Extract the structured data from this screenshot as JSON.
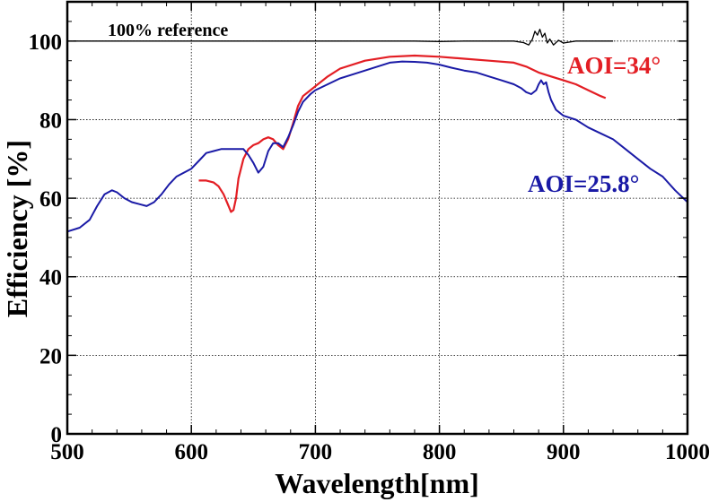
{
  "chart_data": {
    "type": "line",
    "xlabel": "Wavelength[nm]",
    "ylabel": "Efficiency [%]",
    "xlim": [
      500,
      1000
    ],
    "ylim": [
      0,
      110
    ],
    "xticks": [
      500,
      600,
      700,
      800,
      900,
      1000
    ],
    "yticks": [
      0,
      20,
      40,
      60,
      80,
      100
    ],
    "grid": true,
    "series": [
      {
        "name": "100% reference",
        "color": "#000000",
        "x": [
          505,
          520,
          540,
          560,
          580,
          600,
          620,
          640,
          660,
          680,
          700,
          720,
          740,
          760,
          780,
          800,
          820,
          840,
          860,
          868,
          872,
          875,
          877,
          879,
          881,
          883,
          885,
          887,
          889,
          892,
          896,
          900,
          910,
          920,
          930,
          940
        ],
        "y": [
          100,
          100,
          100,
          100,
          100,
          100,
          100,
          100,
          100,
          100,
          100,
          100,
          100,
          100,
          100,
          99.9,
          100,
          100,
          100,
          99.6,
          99,
          100.5,
          102.5,
          101.5,
          103,
          101,
          102,
          99.5,
          100.5,
          99,
          100.2,
          99.5,
          100,
          100,
          100,
          100
        ]
      },
      {
        "name": "AOI=34°",
        "color": "#e31e24",
        "x": [
          606,
          612,
          618,
          622,
          626,
          630,
          632,
          634,
          636,
          638,
          642,
          646,
          650,
          654,
          658,
          662,
          666,
          670,
          674,
          678,
          682,
          686,
          690,
          696,
          700,
          710,
          720,
          740,
          760,
          780,
          800,
          820,
          840,
          860,
          870,
          880,
          890,
          900,
          910,
          920,
          930,
          934
        ],
        "y": [
          64.5,
          64.5,
          64,
          63,
          61,
          58,
          56.5,
          57,
          60,
          65,
          70,
          72.5,
          73.5,
          74,
          75,
          75.5,
          75,
          73.5,
          72.5,
          75,
          79,
          83.5,
          86,
          87.5,
          88.5,
          91,
          93,
          95,
          96,
          96.3,
          96,
          95.5,
          95,
          94.5,
          93.5,
          92,
          91,
          90,
          89,
          87.5,
          86,
          85.5
        ]
      },
      {
        "name": "AOI=25.8°",
        "color": "#1a1aa6",
        "x": [
          500,
          510,
          518,
          524,
          530,
          536,
          540,
          546,
          552,
          558,
          564,
          570,
          576,
          582,
          588,
          594,
          600,
          606,
          612,
          618,
          624,
          630,
          636,
          642,
          646,
          650,
          654,
          658,
          662,
          666,
          670,
          674,
          678,
          682,
          686,
          690,
          696,
          700,
          710,
          720,
          730,
          740,
          750,
          760,
          770,
          780,
          790,
          800,
          810,
          820,
          830,
          840,
          850,
          860,
          866,
          870,
          874,
          878,
          880,
          882,
          884,
          886,
          888,
          890,
          894,
          900,
          910,
          920,
          930,
          940,
          950,
          960,
          970,
          980,
          990,
          1000
        ],
        "y": [
          51.5,
          52.5,
          54.5,
          58,
          61,
          62,
          61.5,
          60,
          59,
          58.5,
          58,
          59,
          61,
          63.5,
          65.5,
          66.5,
          67.5,
          69.5,
          71.5,
          72,
          72.5,
          72.5,
          72.5,
          72.5,
          71,
          69,
          66.5,
          68,
          72,
          74,
          74,
          73,
          75.5,
          78.5,
          82,
          84.5,
          86.5,
          87.5,
          89,
          90.5,
          91.5,
          92.5,
          93.5,
          94.5,
          94.8,
          94.7,
          94.5,
          94,
          93.2,
          92.5,
          92,
          91,
          90,
          89,
          88,
          87,
          86.5,
          87.5,
          89,
          90,
          89,
          89.5,
          87,
          85,
          82.5,
          81,
          80,
          78,
          76.5,
          75,
          72.5,
          70,
          67.5,
          65.5,
          62,
          59
        ]
      }
    ],
    "annotations": [
      {
        "text": "100% reference",
        "color": "#000000"
      },
      {
        "text": "AOI=34°",
        "color": "#e31e24"
      },
      {
        "text": "AOI=25.8°",
        "color": "#1a1aa6"
      }
    ]
  }
}
